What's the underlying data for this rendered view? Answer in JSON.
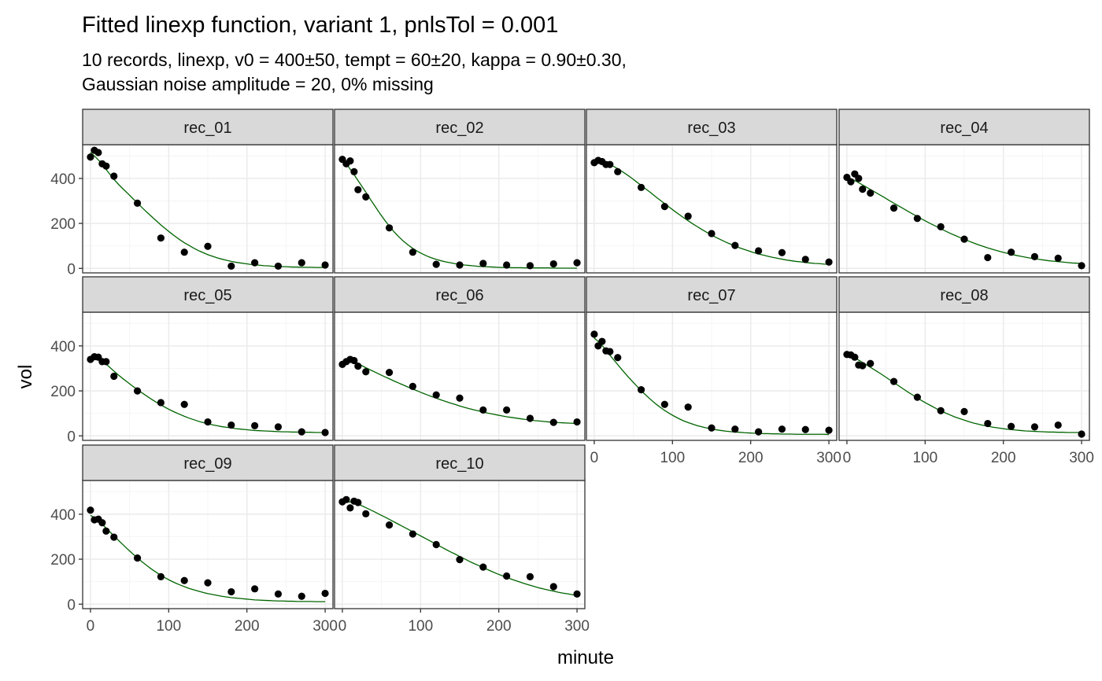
{
  "chart_data": {
    "type": "scatter",
    "title": "Fitted linexp function, variant 1, pnlsTol = 0.001",
    "subtitle_lines": [
      "10 records, linexp, v0 = 400±50, tempt =  60±20, kappa = 0.90±0.30,",
      "Gaussian noise amplitude = 20, 0% missing"
    ],
    "xlabel": "minute",
    "ylabel": "vol",
    "xlim": [
      -10,
      310
    ],
    "ylim": [
      -20,
      550
    ],
    "x_ticks": [
      0,
      100,
      200,
      300
    ],
    "y_ticks": [
      0,
      200,
      400
    ],
    "grid": true,
    "legend": "none",
    "colors": {
      "point": "#000000",
      "fit_line": "#006400",
      "strip_fill": "#d9d9d9",
      "grid_major": "#ebebeb",
      "grid_minor": "#f5f5f5",
      "panel_border": "#333333"
    },
    "panels": [
      {
        "label": "rec_01",
        "x": [
          0,
          5,
          10,
          15,
          20,
          30,
          60,
          90,
          120,
          150,
          180,
          210,
          240,
          270,
          300
        ],
        "y": [
          495,
          525,
          515,
          465,
          455,
          410,
          290,
          135,
          72,
          98,
          10,
          25,
          10,
          25,
          15
        ],
        "fit_y": [
          515,
          497,
          475,
          449,
          422,
          396,
          373,
          352,
          332,
          311,
          291,
          270,
          250,
          231,
          212,
          193,
          176,
          159,
          143,
          128,
          114,
          102,
          90,
          79,
          70,
          61,
          54,
          47,
          41,
          36,
          31,
          27,
          24,
          21,
          18,
          16,
          14,
          12,
          11,
          9,
          8,
          8,
          7,
          6,
          6,
          5,
          5,
          5,
          4,
          4,
          4
        ]
      },
      {
        "label": "rec_02",
        "x": [
          0,
          5,
          10,
          15,
          20,
          30,
          60,
          90,
          120,
          150,
          180,
          210,
          240,
          270,
          300
        ],
        "y": [
          485,
          465,
          478,
          430,
          350,
          318,
          180,
          72,
          18,
          15,
          22,
          15,
          12,
          20,
          25
        ],
        "fit_y": [
          482,
          460,
          432,
          401,
          370,
          339,
          306,
          275,
          244,
          215,
          188,
          163,
          141,
          121,
          104,
          89,
          76,
          65,
          55,
          47,
          40,
          34,
          29,
          25,
          21,
          18,
          15,
          13,
          11,
          9,
          8,
          7,
          6,
          5,
          4,
          4,
          3,
          3,
          3,
          2,
          2,
          2,
          2,
          2,
          2,
          1,
          1,
          1,
          1,
          1,
          1
        ]
      },
      {
        "label": "rec_03",
        "x": [
          0,
          5,
          10,
          15,
          20,
          30,
          60,
          90,
          120,
          150,
          180,
          210,
          240,
          270,
          300
        ],
        "y": [
          470,
          480,
          475,
          462,
          462,
          430,
          360,
          275,
          232,
          155,
          102,
          78,
          70,
          40,
          28
        ],
        "fit_y": [
          470,
          473,
          471,
          465,
          455,
          443,
          430,
          416,
          401,
          385,
          369,
          353,
          337,
          320,
          304,
          288,
          272,
          256,
          241,
          226,
          212,
          198,
          185,
          172,
          160,
          148,
          137,
          127,
          117,
          108,
          99,
          91,
          84,
          77,
          70,
          64,
          59,
          54,
          49,
          45,
          41,
          37,
          34,
          31,
          29,
          26,
          24,
          22,
          21,
          19,
          18
        ]
      },
      {
        "label": "rec_04",
        "x": [
          0,
          5,
          10,
          15,
          20,
          30,
          60,
          90,
          120,
          150,
          180,
          210,
          240,
          270,
          300
        ],
        "y": [
          405,
          385,
          420,
          400,
          352,
          335,
          268,
          222,
          185,
          130,
          48,
          72,
          52,
          45,
          12
        ],
        "fit_y": [
          405,
          397,
          387,
          375,
          363,
          351,
          339,
          327,
          315,
          302,
          290,
          278,
          266,
          254,
          242,
          231,
          219,
          208,
          197,
          187,
          176,
          166,
          156,
          147,
          138,
          129,
          121,
          113,
          105,
          98,
          91,
          85,
          79,
          73,
          68,
          63,
          58,
          54,
          50,
          46,
          43,
          40,
          37,
          34,
          32,
          30,
          28,
          26,
          24,
          23,
          22
        ]
      },
      {
        "label": "rec_05",
        "x": [
          0,
          5,
          10,
          15,
          20,
          30,
          60,
          90,
          120,
          150,
          180,
          210,
          240,
          270,
          300
        ],
        "y": [
          340,
          352,
          350,
          330,
          330,
          265,
          200,
          148,
          140,
          62,
          48,
          45,
          40,
          18,
          15
        ],
        "fit_y": [
          342,
          346,
          339,
          325,
          307,
          288,
          270,
          253,
          237,
          221,
          206,
          191,
          177,
          163,
          150,
          138,
          126,
          115,
          105,
          96,
          87,
          79,
          72,
          65,
          59,
          54,
          49,
          45,
          41,
          38,
          35,
          32,
          30,
          28,
          26,
          24,
          23,
          22,
          21,
          20,
          19,
          18,
          18,
          17,
          17,
          16,
          16,
          16,
          15,
          15,
          15
        ]
      },
      {
        "label": "rec_06",
        "x": [
          0,
          5,
          10,
          15,
          20,
          30,
          60,
          90,
          120,
          150,
          180,
          210,
          240,
          270,
          300
        ],
        "y": [
          318,
          330,
          340,
          335,
          310,
          285,
          282,
          220,
          182,
          168,
          115,
          115,
          78,
          60,
          62
        ],
        "fit_y": [
          320,
          331,
          332,
          325,
          314,
          303,
          293,
          283,
          273,
          263,
          254,
          244,
          235,
          226,
          217,
          208,
          200,
          191,
          183,
          175,
          168,
          160,
          153,
          146,
          140,
          133,
          127,
          121,
          116,
          111,
          106,
          101,
          97,
          93,
          89,
          85,
          82,
          79,
          76,
          73,
          71,
          68,
          66,
          64,
          62,
          61,
          59,
          58,
          57,
          56,
          55
        ]
      },
      {
        "label": "rec_07",
        "x": [
          0,
          5,
          10,
          15,
          20,
          30,
          60,
          90,
          120,
          150,
          180,
          210,
          240,
          270,
          300
        ],
        "y": [
          452,
          400,
          420,
          378,
          375,
          348,
          205,
          140,
          128,
          35,
          30,
          18,
          30,
          28,
          25
        ],
        "fit_y": [
          435,
          417,
          394,
          368,
          342,
          317,
          292,
          268,
          245,
          223,
          201,
          181,
          162,
          144,
          128,
          113,
          100,
          88,
          77,
          67,
          59,
          52,
          45,
          40,
          35,
          31,
          27,
          24,
          21,
          19,
          17,
          16,
          14,
          13,
          12,
          11,
          10,
          10,
          9,
          9,
          8,
          8,
          8,
          7,
          7,
          7,
          7,
          7,
          7,
          7,
          6
        ]
      },
      {
        "label": "rec_08",
        "x": [
          0,
          5,
          10,
          15,
          20,
          30,
          60,
          90,
          120,
          150,
          180,
          210,
          240,
          270,
          300
        ],
        "y": [
          362,
          360,
          350,
          315,
          312,
          322,
          242,
          172,
          112,
          108,
          55,
          42,
          40,
          48,
          8
        ],
        "fit_y": [
          360,
          353,
          343,
          331,
          318,
          305,
          292,
          279,
          265,
          251,
          237,
          223,
          209,
          195,
          182,
          169,
          156,
          144,
          133,
          122,
          111,
          102,
          93,
          84,
          77,
          70,
          63,
          57,
          52,
          47,
          43,
          39,
          36,
          33,
          30,
          28,
          26,
          24,
          22,
          21,
          20,
          19,
          18,
          17,
          17,
          16,
          16,
          15,
          15,
          15,
          15
        ]
      },
      {
        "label": "rec_09",
        "x": [
          0,
          5,
          10,
          15,
          20,
          30,
          60,
          90,
          120,
          150,
          180,
          210,
          240,
          270,
          300
        ],
        "y": [
          418,
          375,
          378,
          362,
          325,
          298,
          205,
          122,
          105,
          95,
          55,
          68,
          45,
          35,
          48
        ],
        "fit_y": [
          395,
          383,
          366,
          345,
          324,
          304,
          283,
          263,
          243,
          224,
          206,
          188,
          172,
          156,
          142,
          128,
          116,
          105,
          95,
          86,
          78,
          70,
          64,
          58,
          52,
          47,
          43,
          39,
          35,
          32,
          29,
          27,
          25,
          23,
          21,
          19,
          18,
          17,
          16,
          15,
          14,
          14,
          13,
          13,
          12,
          12,
          12,
          12,
          11,
          11,
          11
        ]
      },
      {
        "label": "rec_10",
        "x": [
          0,
          5,
          10,
          15,
          20,
          30,
          60,
          90,
          120,
          150,
          180,
          210,
          240,
          270,
          300
        ],
        "y": [
          455,
          465,
          428,
          458,
          452,
          402,
          352,
          312,
          265,
          198,
          165,
          125,
          122,
          78,
          45
        ],
        "fit_y": [
          450,
          455,
          454,
          448,
          439,
          429,
          419,
          409,
          398,
          388,
          377,
          366,
          355,
          344,
          333,
          322,
          311,
          300,
          289,
          278,
          266,
          255,
          244,
          233,
          223,
          212,
          202,
          191,
          181,
          172,
          162,
          153,
          144,
          135,
          127,
          119,
          111,
          104,
          97,
          90,
          84,
          78,
          72,
          67,
          62,
          58,
          53,
          49,
          46,
          42,
          39
        ]
      }
    ]
  }
}
